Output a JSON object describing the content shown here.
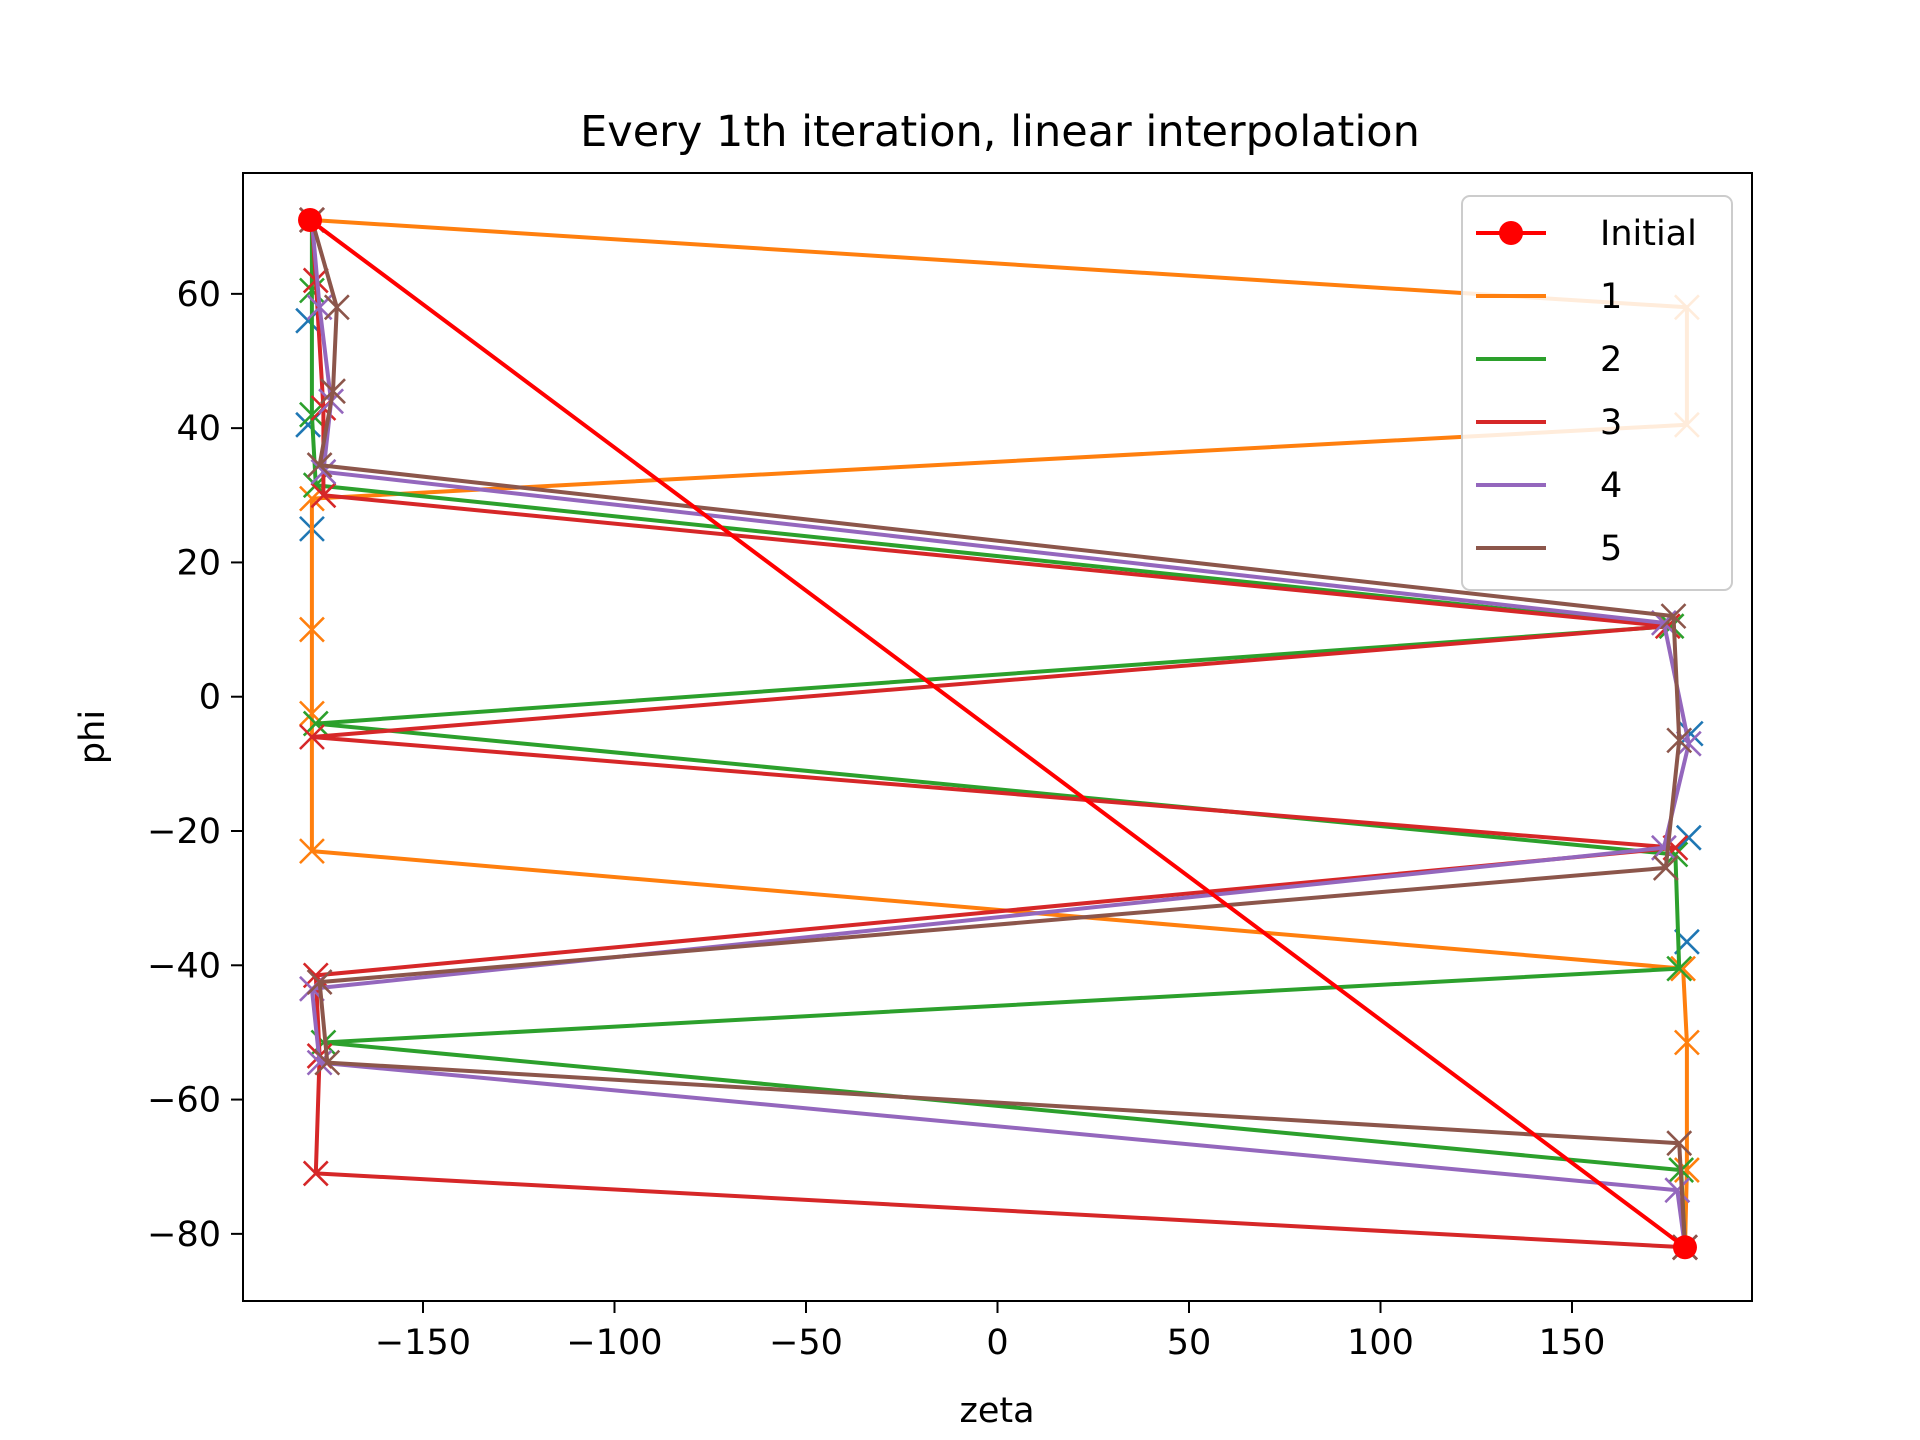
{
  "chart_data": {
    "type": "line",
    "title": "Every 1th iteration, linear interpolation",
    "xlabel": "zeta",
    "ylabel": "phi",
    "xlim": [
      -197,
      197
    ],
    "ylim": [
      -90,
      78
    ],
    "xticks": [
      -150,
      -100,
      -50,
      0,
      50,
      100,
      150
    ],
    "xtick_labels": [
      "−150",
      "−100",
      "−50",
      "0",
      "50",
      "100",
      "150"
    ],
    "yticks": [
      -80,
      -60,
      -40,
      -20,
      0,
      20,
      40,
      60
    ],
    "ytick_labels": [
      "−80",
      "−60",
      "−40",
      "−20",
      "0",
      "20",
      "40",
      "60"
    ],
    "grid": false,
    "legend_position": "top-right",
    "series": [
      {
        "name": "Initial",
        "color": "#ff0000",
        "marker": "circle",
        "points": [
          [
            -179.5,
            71
          ],
          [
            179.5,
            -82
          ]
        ]
      },
      {
        "name": "1",
        "color": "#ff7f0e",
        "marker": "x",
        "points": [
          [
            -179,
            71
          ],
          [
            180,
            58
          ],
          [
            180,
            40.5
          ],
          [
            -179,
            29.5
          ],
          [
            -179,
            10
          ],
          [
            -179,
            -2.5
          ],
          [
            -179,
            -23
          ],
          [
            179,
            -40.5
          ],
          [
            180,
            -51.5
          ],
          [
            180,
            -70.5
          ],
          [
            179.5,
            -82
          ]
        ]
      },
      {
        "name": "2",
        "color": "#2ca02c",
        "marker": "x",
        "points": [
          [
            -179,
            71
          ],
          [
            -179,
            60.5
          ],
          [
            -179,
            42
          ],
          [
            -178,
            31.5
          ],
          [
            176,
            10.5
          ],
          [
            -178,
            -4
          ],
          [
            177,
            -23.5
          ],
          [
            178,
            -40.5
          ],
          [
            -176,
            -51.5
          ],
          [
            178.5,
            -70.5
          ],
          [
            179.5,
            -82
          ]
        ]
      },
      {
        "name": "3",
        "color": "#d62728",
        "marker": "x",
        "points": [
          [
            -179,
            71
          ],
          [
            -178,
            62
          ],
          [
            -176,
            43
          ],
          [
            -176,
            30
          ],
          [
            175,
            10.5
          ],
          [
            -179,
            -6
          ],
          [
            177,
            -22.5
          ],
          [
            -178,
            -41.5
          ],
          [
            -177,
            -53.5
          ],
          [
            -178,
            -71
          ],
          [
            179.5,
            -82
          ]
        ]
      },
      {
        "name": "4",
        "color": "#9467bd",
        "marker": "x",
        "points": [
          [
            -179,
            71
          ],
          [
            -177,
            58
          ],
          [
            -174,
            44
          ],
          [
            -176,
            33.5
          ],
          [
            174,
            11
          ],
          [
            180.5,
            -7
          ],
          [
            174,
            -22.5
          ],
          [
            -179,
            -43.5
          ],
          [
            -177,
            -54.5
          ],
          [
            177.5,
            -73.5
          ],
          [
            179.5,
            -82
          ]
        ]
      },
      {
        "name": "5",
        "color": "#8c564b",
        "marker": "x",
        "points": [
          [
            -179,
            71
          ],
          [
            -172.5,
            58
          ],
          [
            -173.5,
            45.5
          ],
          [
            -177,
            34.5
          ],
          [
            176.5,
            12
          ],
          [
            178,
            -6.5
          ],
          [
            174.5,
            -25.5
          ],
          [
            -177,
            -42.5
          ],
          [
            -175,
            -54.5
          ],
          [
            178,
            -66.5
          ],
          [
            179.5,
            -82
          ]
        ]
      }
    ],
    "unlinked_markers": {
      "color": "#1f77b4",
      "marker": "x",
      "points": [
        [
          -180,
          56
        ],
        [
          -180,
          40.5
        ],
        [
          -179,
          25
        ],
        [
          181,
          -5.5
        ],
        [
          180.5,
          -21
        ],
        [
          180,
          -36.5
        ]
      ]
    }
  }
}
